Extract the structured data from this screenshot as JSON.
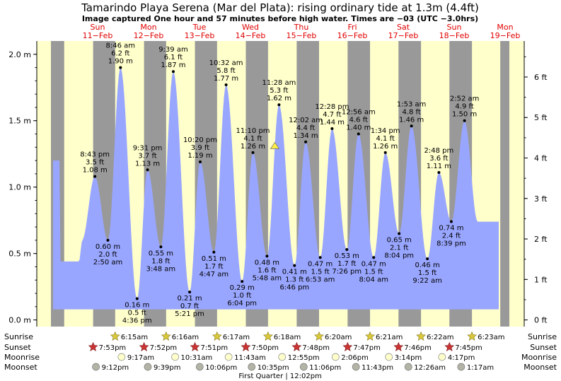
{
  "chart_data": {
    "type": "area",
    "title": "Tamarindo Playa Serena (Mar del Plata): rising  ordinary tide at 1.3m (4.4ft)",
    "subtitle": "Image captured One hour and 57 minutes before high water. Times are −03 (UTC −3.0hrs)",
    "y_left_unit": "m",
    "y_right_unit": "ft",
    "ylim_m": [
      -0.05,
      2.1
    ],
    "y_left_ticks": [
      "0.0 m",
      "0.5 m",
      "1.0 m",
      "1.5 m",
      "2.0 m"
    ],
    "y_left_tick_values": [
      0.0,
      0.5,
      1.0,
      1.5,
      2.0
    ],
    "y_right_ticks": [
      "0 ft",
      "1 ft",
      "2 ft",
      "3 ft",
      "4 ft",
      "5 ft",
      "6 ft"
    ],
    "y_right_tick_values": [
      0,
      1,
      2,
      3,
      4,
      5,
      6
    ],
    "x_unit": "hours since Sun 11-Feb 00:00",
    "xlim_hours": [
      0,
      216
    ],
    "days": [
      {
        "name": "Sun",
        "date": "11−Feb"
      },
      {
        "name": "Mon",
        "date": "12−Feb"
      },
      {
        "name": "Tue",
        "date": "13−Feb"
      },
      {
        "name": "Wed",
        "date": "14−Feb"
      },
      {
        "name": "Thu",
        "date": "15−Feb"
      },
      {
        "name": "Fri",
        "date": "16−Feb"
      },
      {
        "name": "Sat",
        "date": "17−Feb"
      },
      {
        "name": "Sun",
        "date": "18−Feb"
      },
      {
        "name": "Mon",
        "date": "19−Feb"
      }
    ],
    "tides": [
      {
        "t": 20.72,
        "time": "8:43 pm",
        "ft": "3.5 ft",
        "m": 1.08,
        "type": "high"
      },
      {
        "t": 26.83,
        "time": "2:50 am",
        "ft": "2.0 ft",
        "m": 0.6,
        "type": "low"
      },
      {
        "t": 32.77,
        "time": "8:46 am",
        "ft": "6.2 ft",
        "m": 1.9,
        "type": "high"
      },
      {
        "t": 40.6,
        "time": "4:36 pm",
        "ft": "0.5 ft",
        "m": 0.16,
        "type": "low"
      },
      {
        "t": 45.52,
        "time": "9:31 pm",
        "ft": "3.7 ft",
        "m": 1.13,
        "type": "high"
      },
      {
        "t": 51.8,
        "time": "3:48 am",
        "ft": "1.8 ft",
        "m": 0.55,
        "type": "low"
      },
      {
        "t": 57.65,
        "time": "9:39 am",
        "ft": "6.1 ft",
        "m": 1.87,
        "type": "high"
      },
      {
        "t": 65.35,
        "time": "5:21 pm",
        "ft": "0.7 ft",
        "m": 0.21,
        "type": "low"
      },
      {
        "t": 70.33,
        "time": "10:20 pm",
        "ft": "3.9 ft",
        "m": 1.19,
        "type": "high"
      },
      {
        "t": 76.78,
        "time": "4:47 am",
        "ft": "1.7 ft",
        "m": 0.51,
        "type": "low"
      },
      {
        "t": 82.53,
        "time": "10:32 am",
        "ft": "5.8 ft",
        "m": 1.77,
        "type": "high"
      },
      {
        "t": 90.07,
        "time": "6:04 pm",
        "ft": "1.0 ft",
        "m": 0.29,
        "type": "low"
      },
      {
        "t": 95.17,
        "time": "11:10 pm",
        "ft": "4.1 ft",
        "m": 1.26,
        "type": "high"
      },
      {
        "t": 101.8,
        "time": "5:48 am",
        "ft": "1.6 ft",
        "m": 0.48,
        "type": "low"
      },
      {
        "t": 107.47,
        "time": "11:28 am",
        "ft": "5.3 ft",
        "m": 1.62,
        "type": "high"
      },
      {
        "t": 114.77,
        "time": "6:46 pm",
        "ft": "1.3 ft",
        "m": 0.41,
        "type": "low"
      },
      {
        "t": 120.03,
        "time": "12:02 am",
        "ft": "4.4 ft",
        "m": 1.34,
        "type": "high"
      },
      {
        "t": 126.88,
        "time": "6:53 am",
        "ft": "1.5 ft",
        "m": 0.47,
        "type": "low"
      },
      {
        "t": 132.47,
        "time": "12:28 pm",
        "ft": "4.7 ft",
        "m": 1.44,
        "type": "high"
      },
      {
        "t": 139.43,
        "time": "7:26 pm",
        "ft": "1.7 ft",
        "m": 0.53,
        "type": "low"
      },
      {
        "t": 144.93,
        "time": "12:56 am",
        "ft": "4.6 ft",
        "m": 1.4,
        "type": "high"
      },
      {
        "t": 152.07,
        "time": "8:04 am",
        "ft": "1.5 ft",
        "m": 0.47,
        "type": "low"
      },
      {
        "t": 157.57,
        "time": "1:34 pm",
        "ft": "4.1 ft",
        "m": 1.26,
        "type": "high"
      },
      {
        "t": 164.07,
        "time": "8:04 pm",
        "ft": "2.1 ft",
        "m": 0.65,
        "type": "low"
      },
      {
        "t": 169.88,
        "time": "1:53 am",
        "ft": "4.8 ft",
        "m": 1.46,
        "type": "high"
      },
      {
        "t": 177.37,
        "time": "9:22 am",
        "ft": "1.5 ft",
        "m": 0.46,
        "type": "low"
      },
      {
        "t": 182.8,
        "time": "2:48 pm",
        "ft": "3.6 ft",
        "m": 1.11,
        "type": "high"
      },
      {
        "t": 188.65,
        "time": "8:39 pm",
        "ft": "2.4 ft",
        "m": 0.74,
        "type": "low"
      },
      {
        "t": 194.87,
        "time": "2:52 am",
        "ft": "4.9 ft",
        "m": 1.5,
        "type": "high"
      }
    ],
    "current_marker": {
      "t": 105.5,
      "m": 1.3
    },
    "nights": [
      [
        0,
        6.25
      ],
      [
        19.88,
        30.27
      ],
      [
        43.87,
        54.27
      ],
      [
        67.85,
        78.28
      ],
      [
        91.83,
        102.3
      ],
      [
        115.8,
        126.33
      ],
      [
        139.78,
        150.35
      ],
      [
        163.77,
        174.37
      ],
      [
        187.75,
        198.38
      ],
      [
        211.72,
        216
      ]
    ],
    "sunrise": [
      {
        "t": 30.25,
        "time": "6:15am"
      },
      {
        "t": 54.27,
        "time": "6:16am"
      },
      {
        "t": 78.28,
        "time": "6:17am"
      },
      {
        "t": 102.3,
        "time": "6:18am"
      },
      {
        "t": 126.33,
        "time": "6:20am"
      },
      {
        "t": 150.35,
        "time": "6:21am"
      },
      {
        "t": 174.37,
        "time": "6:22am"
      },
      {
        "t": 198.38,
        "time": "6:23am"
      }
    ],
    "sunset": [
      {
        "t": 19.88,
        "time": "7:53pm"
      },
      {
        "t": 43.87,
        "time": "7:52pm"
      },
      {
        "t": 67.85,
        "time": "7:51pm"
      },
      {
        "t": 91.83,
        "time": "7:50pm"
      },
      {
        "t": 115.8,
        "time": "7:48pm"
      },
      {
        "t": 139.78,
        "time": "7:47pm"
      },
      {
        "t": 163.77,
        "time": "7:46pm"
      },
      {
        "t": 187.75,
        "time": "7:45pm"
      }
    ],
    "moonrise": [
      {
        "t": 33.28,
        "time": "9:17am"
      },
      {
        "t": 58.52,
        "time": "10:31am"
      },
      {
        "t": 83.72,
        "time": "11:43am"
      },
      {
        "t": 108.92,
        "time": "12:55pm"
      },
      {
        "t": 134.1,
        "time": "2:06pm"
      },
      {
        "t": 159.23,
        "time": "3:14pm"
      },
      {
        "t": 184.28,
        "time": "4:17pm"
      }
    ],
    "moonset": [
      {
        "t": 21.2,
        "time": "9:12pm"
      },
      {
        "t": 45.65,
        "time": "9:39pm"
      },
      {
        "t": 70.1,
        "time": "10:06pm"
      },
      {
        "t": 94.58,
        "time": "10:35pm"
      },
      {
        "t": 119.1,
        "time": "11:06pm"
      },
      {
        "t": 143.72,
        "time": "11:43pm"
      },
      {
        "t": 168.43,
        "time": "12:26am"
      },
      {
        "t": 193.28,
        "time": "1:17am"
      }
    ],
    "moon_phase": {
      "t": 108.03,
      "label": "First Quarter | 12:02pm"
    }
  },
  "rows": {
    "sunrise_label": "Sunrise",
    "sunset_label": "Sunset",
    "moonrise_label": "Moonrise",
    "moonset_label": "Moonset"
  },
  "colors": {
    "day_bg": "#ffffcc",
    "night_bg": "#999999",
    "water": "#99a6ff",
    "day_label": "#e00000",
    "star_fill": "#d9c93a",
    "sunset_fill": "#cc3333",
    "moonrise_fill": "#ffffcc",
    "moonset_fill": "#b3b3a6",
    "marker": "#ffee44"
  }
}
